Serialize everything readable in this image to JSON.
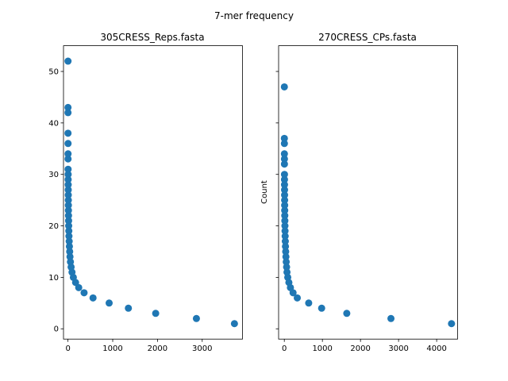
{
  "figure": {
    "suptitle": "7-mer frequency"
  },
  "chart_data": [
    {
      "type": "scatter",
      "title": "305CRESS_Reps.fasta",
      "xlabel": "",
      "ylabel": "",
      "xlim": [
        -100,
        3900
      ],
      "ylim": [
        -2,
        55
      ],
      "xticks": [
        0,
        1000,
        2000,
        3000
      ],
      "yticks": [
        0,
        10,
        20,
        30,
        40,
        50
      ],
      "color": "#1f77b4",
      "grid": false,
      "points": [
        {
          "x": 3720,
          "y": 1
        },
        {
          "x": 2870,
          "y": 2
        },
        {
          "x": 1960,
          "y": 3
        },
        {
          "x": 1350,
          "y": 4
        },
        {
          "x": 920,
          "y": 5
        },
        {
          "x": 560,
          "y": 6
        },
        {
          "x": 360,
          "y": 7
        },
        {
          "x": 240,
          "y": 8
        },
        {
          "x": 170,
          "y": 9
        },
        {
          "x": 120,
          "y": 10
        },
        {
          "x": 90,
          "y": 11
        },
        {
          "x": 70,
          "y": 12
        },
        {
          "x": 55,
          "y": 13
        },
        {
          "x": 45,
          "y": 14
        },
        {
          "x": 38,
          "y": 15
        },
        {
          "x": 32,
          "y": 16
        },
        {
          "x": 27,
          "y": 17
        },
        {
          "x": 22,
          "y": 18
        },
        {
          "x": 19,
          "y": 19
        },
        {
          "x": 16,
          "y": 20
        },
        {
          "x": 14,
          "y": 21
        },
        {
          "x": 12,
          "y": 22
        },
        {
          "x": 10,
          "y": 23
        },
        {
          "x": 9,
          "y": 24
        },
        {
          "x": 8,
          "y": 25
        },
        {
          "x": 7,
          "y": 26
        },
        {
          "x": 6,
          "y": 27
        },
        {
          "x": 5,
          "y": 28
        },
        {
          "x": 4,
          "y": 29
        },
        {
          "x": 4,
          "y": 30
        },
        {
          "x": 3,
          "y": 31
        },
        {
          "x": 2,
          "y": 33
        },
        {
          "x": 2,
          "y": 34
        },
        {
          "x": 2,
          "y": 36
        },
        {
          "x": 1,
          "y": 38
        },
        {
          "x": 1,
          "y": 42
        },
        {
          "x": 1,
          "y": 43
        },
        {
          "x": 1,
          "y": 52
        }
      ]
    },
    {
      "type": "scatter",
      "title": "270CRESS_CPs.fasta",
      "xlabel": "",
      "ylabel": "Count",
      "xlim": [
        -150,
        4550
      ],
      "ylim": [
        -2,
        55
      ],
      "xticks": [
        0,
        1000,
        2000,
        3000,
        4000
      ],
      "yticks": [
        0,
        10,
        20,
        30,
        40,
        50
      ],
      "show_ytick_labels": false,
      "color": "#1f77b4",
      "grid": false,
      "points": [
        {
          "x": 4390,
          "y": 1
        },
        {
          "x": 2800,
          "y": 2
        },
        {
          "x": 1640,
          "y": 3
        },
        {
          "x": 980,
          "y": 4
        },
        {
          "x": 640,
          "y": 5
        },
        {
          "x": 340,
          "y": 6
        },
        {
          "x": 230,
          "y": 7
        },
        {
          "x": 160,
          "y": 8
        },
        {
          "x": 120,
          "y": 9
        },
        {
          "x": 90,
          "y": 10
        },
        {
          "x": 70,
          "y": 11
        },
        {
          "x": 60,
          "y": 12
        },
        {
          "x": 50,
          "y": 13
        },
        {
          "x": 42,
          "y": 14
        },
        {
          "x": 36,
          "y": 15
        },
        {
          "x": 30,
          "y": 16
        },
        {
          "x": 26,
          "y": 17
        },
        {
          "x": 22,
          "y": 18
        },
        {
          "x": 19,
          "y": 19
        },
        {
          "x": 16,
          "y": 20
        },
        {
          "x": 14,
          "y": 21
        },
        {
          "x": 12,
          "y": 22
        },
        {
          "x": 10,
          "y": 23
        },
        {
          "x": 9,
          "y": 24
        },
        {
          "x": 8,
          "y": 25
        },
        {
          "x": 7,
          "y": 26
        },
        {
          "x": 6,
          "y": 27
        },
        {
          "x": 5,
          "y": 28
        },
        {
          "x": 4,
          "y": 29
        },
        {
          "x": 4,
          "y": 30
        },
        {
          "x": 3,
          "y": 32
        },
        {
          "x": 3,
          "y": 33
        },
        {
          "x": 2,
          "y": 34
        },
        {
          "x": 2,
          "y": 36
        },
        {
          "x": 1,
          "y": 37
        },
        {
          "x": 1,
          "y": 47
        }
      ]
    }
  ]
}
